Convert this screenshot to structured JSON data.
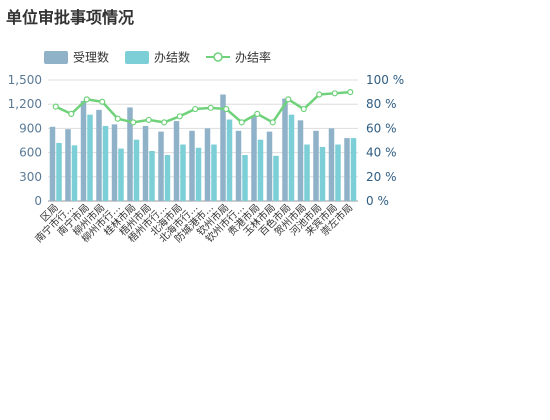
{
  "page": {
    "title": "单位审批事项情况"
  },
  "colors": {
    "accepted": "#8fb2c9",
    "completed": "#7ccfd6",
    "rate": "#6fd27a",
    "axis_left": "#5a7a96",
    "axis_right": "#2f5d82"
  },
  "legend": [
    {
      "label": "受理数",
      "kind": "bar",
      "color": "#8fb2c9"
    },
    {
      "label": "办结数",
      "kind": "bar",
      "color": "#7ccfd6"
    },
    {
      "label": "办结率",
      "kind": "line",
      "color": "#6fd27a"
    }
  ],
  "chart_data": {
    "type": "bar",
    "title": "单位审批事项情况",
    "categories": [
      "区局",
      "南宁市行...",
      "南宁市局",
      "柳州市局",
      "柳州市行...",
      "桂林市局",
      "梧州市局",
      "梧州市行...",
      "北海市局",
      "北海市行...",
      "防城港市...",
      "钦州市局",
      "钦州市行...",
      "贵港市局",
      "玉林市局",
      "百色市局",
      "贺州市局",
      "河池市局",
      "来宾市局",
      "崇左市局"
    ],
    "y_left": {
      "min": 0,
      "max": 1500,
      "ticks": [
        "0",
        "300",
        "600",
        "900",
        "1,200",
        "1,500"
      ]
    },
    "y_right": {
      "min": 0,
      "max": 100,
      "ticks": [
        "0 %",
        "20 %",
        "40 %",
        "60 %",
        "80 %",
        "100 %"
      ]
    },
    "series": [
      {
        "name": "受理数",
        "type": "bar",
        "axis": "left",
        "values": [
          920,
          890,
          1240,
          1130,
          950,
          1160,
          930,
          860,
          990,
          870,
          900,
          1320,
          870,
          1050,
          860,
          1270,
          1000,
          870,
          900,
          780
        ]
      },
      {
        "name": "办结数",
        "type": "bar",
        "axis": "left",
        "values": [
          720,
          690,
          1070,
          930,
          650,
          760,
          620,
          570,
          700,
          660,
          700,
          1010,
          570,
          760,
          560,
          1070,
          700,
          670,
          700,
          780
        ]
      },
      {
        "name": "办结率",
        "type": "line",
        "axis": "right",
        "values": [
          78,
          72,
          84,
          82,
          68,
          65,
          67,
          65,
          70,
          76,
          77,
          76,
          65,
          72,
          65,
          84,
          76,
          88,
          89,
          90
        ]
      }
    ],
    "grid": true,
    "legend_position": "top-left"
  }
}
